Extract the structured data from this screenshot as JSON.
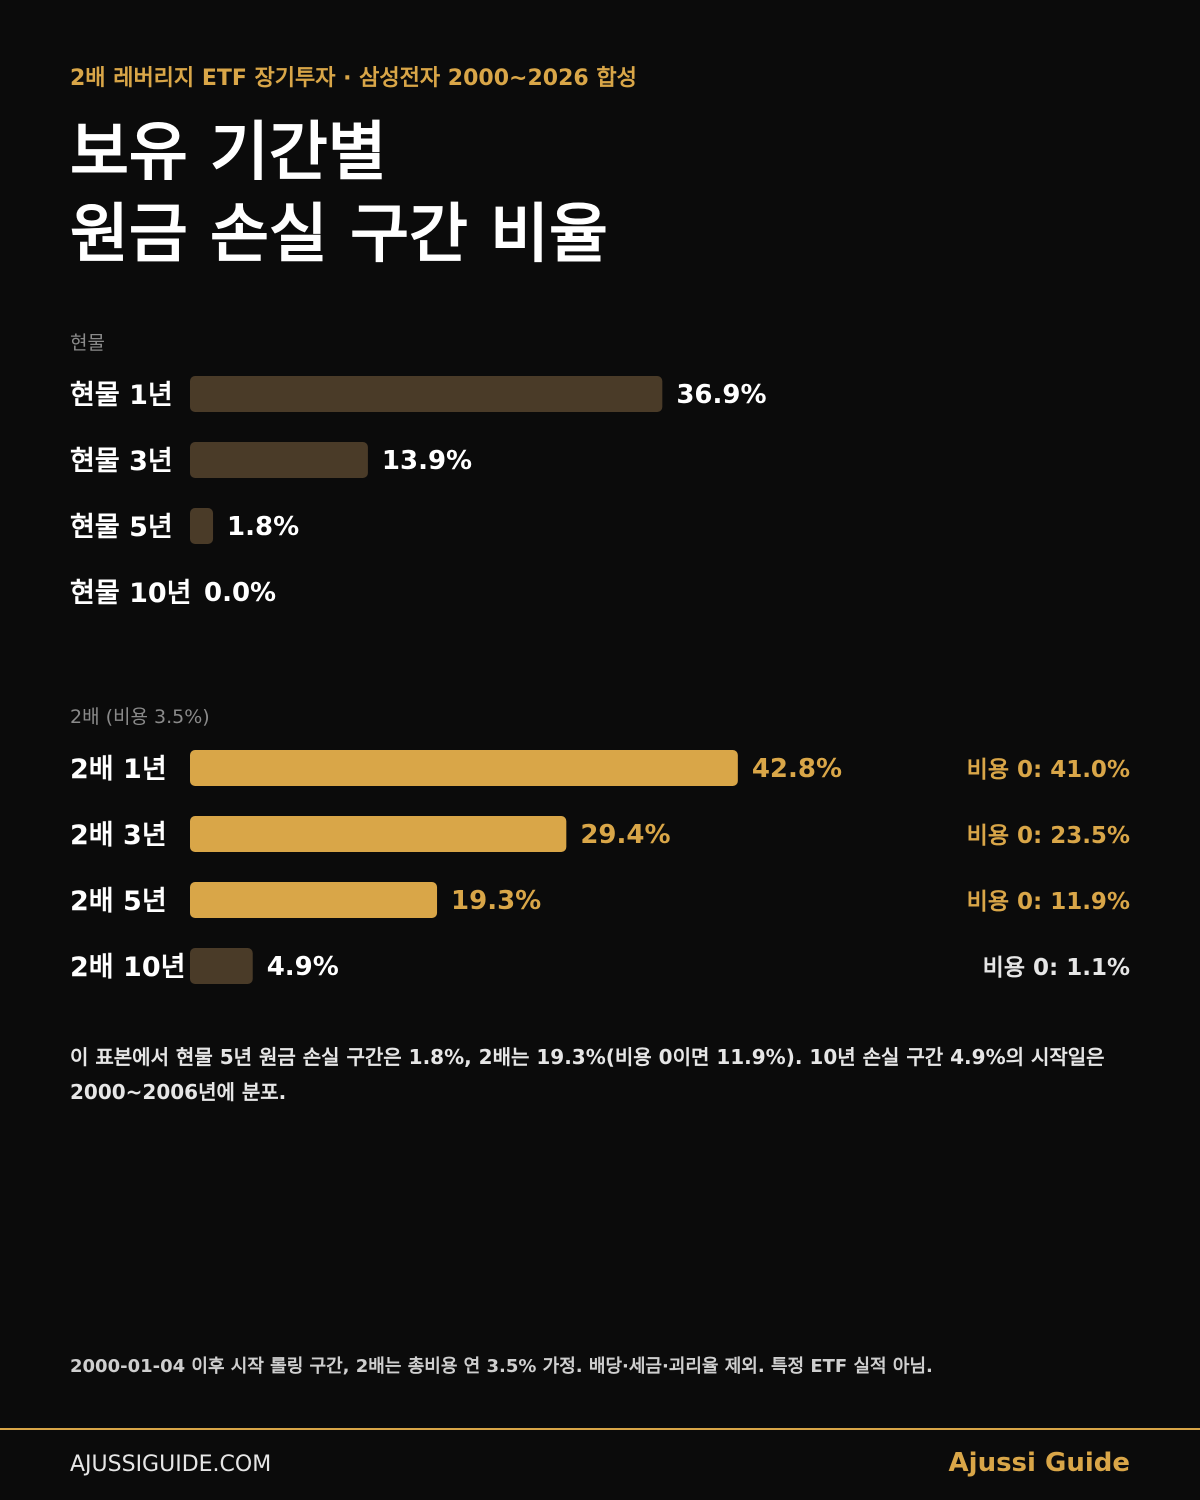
{
  "header": {
    "kicker": "2배 레버리지 ETF 장기투자 · 삼성전자 2000~2026 합성",
    "title_line1": "보유 기간별",
    "title_line2": "원금 손실 구간 비율"
  },
  "colors": {
    "background": "#0b0b0b",
    "accent": "#d9a648",
    "muted_bar": "#4a3b28",
    "label_gray": "#8a8a8a"
  },
  "chart_data": [
    {
      "type": "bar",
      "orientation": "horizontal",
      "section_label": "현물",
      "categories": [
        "현물 1년",
        "현물 3년",
        "현물 5년",
        "현물 10년"
      ],
      "values": [
        36.9,
        13.9,
        1.8,
        0.0
      ],
      "value_labels": [
        "36.9%",
        "13.9%",
        "1.8%",
        "0.0%"
      ],
      "bar_color": "#4a3b28",
      "xlim": [
        0,
        60
      ]
    },
    {
      "type": "bar",
      "orientation": "horizontal",
      "section_label": "2배 (비용 3.5%)",
      "categories": [
        "2배 1년",
        "2배 3년",
        "2배 5년",
        "2배 10년"
      ],
      "values": [
        42.8,
        29.4,
        19.3,
        4.9
      ],
      "value_labels": [
        "42.8%",
        "29.4%",
        "19.3%",
        "4.9%"
      ],
      "bar_colors": [
        "#d9a648",
        "#d9a648",
        "#d9a648",
        "#4a3b28"
      ],
      "annotations": [
        "비용 0: 41.0%",
        "비용 0: 23.5%",
        "비용 0: 11.9%",
        "비용 0: 1.1%"
      ],
      "annotation_colors": [
        "#d9a648",
        "#d9a648",
        "#d9a648",
        "#e6e6e6"
      ],
      "xlim": [
        0,
        60
      ]
    }
  ],
  "note": "이 표본에서 현물 5년 원금 손실 구간은 1.8%, 2배는 19.3%(비용 0이면 11.9%). 10년 손실 구간 4.9%의 시작일은 2000~2006년에 분포.",
  "footnote": "2000-01-04 이후 시작 롤링 구간, 2배는 총비용 연 3.5% 가정. 배당·세금·괴리율 제외. 특정 ETF 실적 아님.",
  "footer": {
    "site": "AJUSSIGUIDE.COM",
    "brand": "Ajussi Guide"
  }
}
